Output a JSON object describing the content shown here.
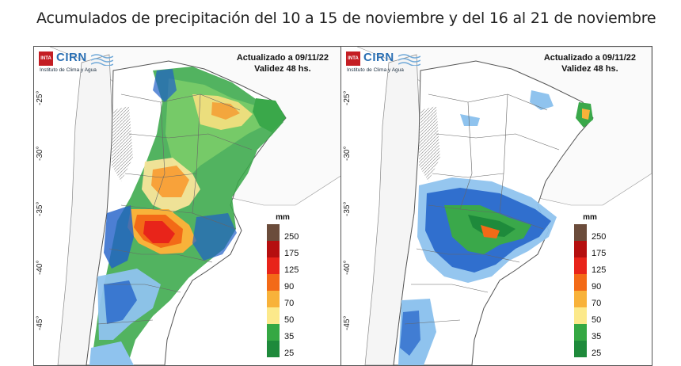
{
  "title": "Acumulados de precipitación del 10 a 15 de noviembre y del 16 al 21 de noviembre",
  "logo": {
    "box_text": "INTA",
    "name": "CIRN",
    "subtitle": "Instituto de Clima y Agua"
  },
  "panels": [
    {
      "updated": "Actualizado a 09/11/22",
      "validity": "Validez 48 hs."
    },
    {
      "updated": "Actualizado a 09/11/22",
      "validity": "Validez 48 hs."
    }
  ],
  "latitude_labels": [
    "-25°",
    "-30°",
    "-35°",
    "-40°",
    "-45°"
  ],
  "legend": {
    "unit": "mm",
    "levels": [
      {
        "label": "250",
        "color": "#6b4c3b"
      },
      {
        "label": "175",
        "color": "#b50f0f"
      },
      {
        "label": "125",
        "color": "#e8241a"
      },
      {
        "label": "90",
        "color": "#f36a17"
      },
      {
        "label": "70",
        "color": "#f8b23a"
      },
      {
        "label": "50",
        "color": "#fce98b"
      },
      {
        "label": "35",
        "color": "#35a843"
      },
      {
        "label": "25",
        "color": "#1e8a3b"
      }
    ]
  },
  "colors": {
    "blue_low": "#1f5fc8",
    "blue_light": "#8fc3ee",
    "green": "#3aa84a"
  }
}
